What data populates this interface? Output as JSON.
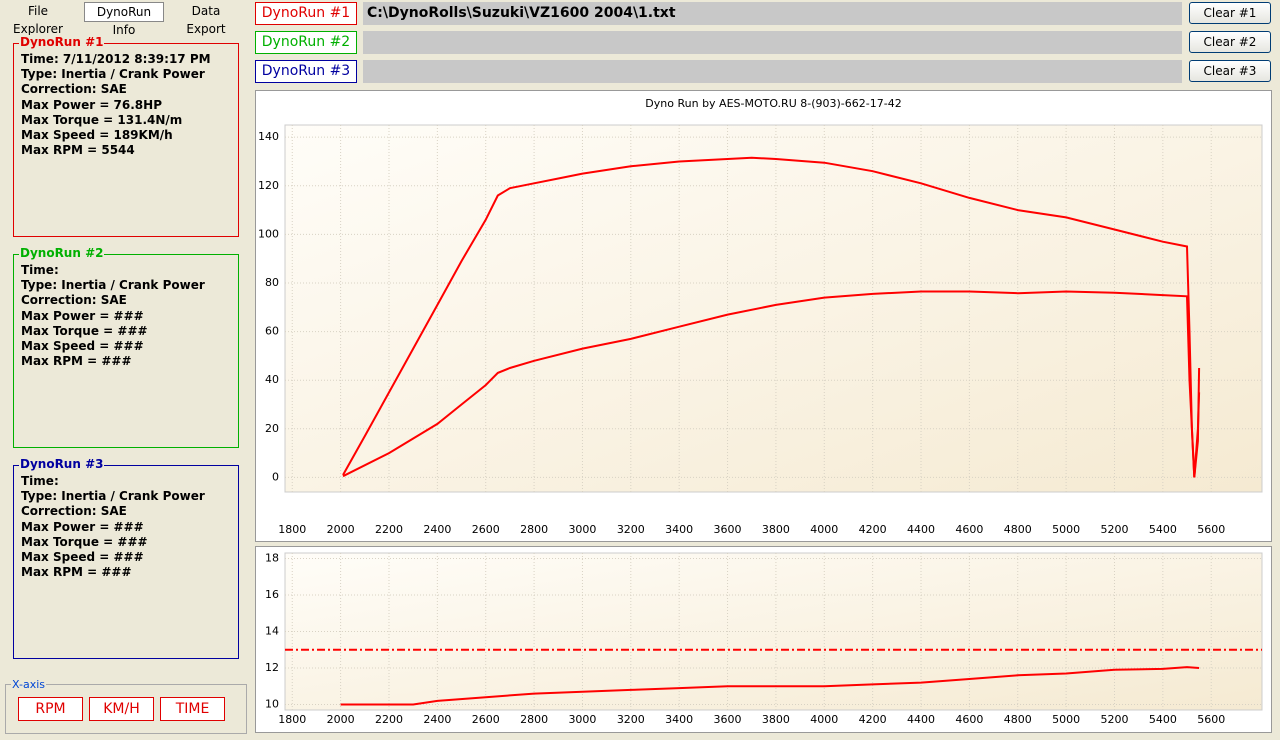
{
  "tabs": [
    "File Explorer",
    "DynoRun Info",
    "Data Export"
  ],
  "runs": [
    {
      "label": "DynoRun #1",
      "color": "#e00000",
      "path": "C:\\DynoRolls\\Suzuki\\VZ1600 2004\\1.txt"
    },
    {
      "label": "DynoRun #2",
      "color": "#00b000"
    },
    {
      "label": "DynoRun #3",
      "color": "#0000a0"
    }
  ],
  "clear_buttons": [
    "Clear #1",
    "Clear #2",
    "Clear #3"
  ],
  "info_panels": [
    {
      "title": "DynoRun #1",
      "color": "#e00000",
      "lines": [
        "Time: 7/11/2012 8:39:17 PM",
        "Type: Inertia / Crank Power",
        "Correction: SAE",
        "Max Power =  76.8HP",
        "Max Torque =  131.4N/m",
        "Max Speed =  189KM/h",
        "Max RPM =  5544"
      ]
    },
    {
      "title": "DynoRun #2",
      "color": "#00b000",
      "lines": [
        "Time:",
        "Type: Inertia / Crank Power",
        "Correction: SAE",
        "Max Power = ###",
        "Max Torque = ###",
        "Max Speed = ###",
        "Max RPM = ###"
      ]
    },
    {
      "title": "DynoRun #3",
      "color": "#0000a0",
      "lines": [
        "Time:",
        "Type: Inertia / Crank Power",
        "Correction: SAE",
        "Max Power = ###",
        "Max Torque = ###",
        "Max Speed = ###",
        "Max RPM = ###"
      ]
    }
  ],
  "x_axis": {
    "title": "X-axis",
    "buttons": [
      "RPM",
      "KM/H",
      "TIME"
    ]
  },
  "chart_data": [
    {
      "type": "line",
      "title": "Dyno Run by AES-MOTO.RU   8-(903)-662-17-42",
      "xlim": [
        1770,
        5810
      ],
      "ylim": [
        -6,
        145
      ],
      "xticks": [
        1800,
        2000,
        2200,
        2400,
        2600,
        2800,
        3000,
        3200,
        3400,
        3600,
        3800,
        4000,
        4200,
        4400,
        4600,
        4800,
        5000,
        5200,
        5400,
        5600
      ],
      "yticks": [
        0,
        20,
        40,
        60,
        80,
        100,
        120,
        140
      ],
      "grid": true,
      "series": [
        {
          "color": "#ff0000",
          "x": [
            2010,
            2100,
            2200,
            2300,
            2400,
            2500,
            2600,
            2650,
            2700,
            2800,
            2900,
            3000,
            3200,
            3400,
            3600,
            3700,
            3800,
            4000,
            4200,
            4400,
            4600,
            4800,
            5000,
            5200,
            5400,
            5500,
            5510,
            5520,
            5530,
            5545,
            5550
          ],
          "values": [
            1,
            17,
            35,
            53,
            71,
            89,
            106,
            116,
            119,
            121,
            123,
            125,
            128,
            130,
            131,
            131.5,
            131,
            129.5,
            126,
            121,
            115,
            110,
            107,
            102,
            97,
            95,
            60,
            20,
            0,
            15,
            45
          ]
        },
        {
          "color": "#ff0000",
          "x": [
            2010,
            2200,
            2400,
            2500,
            2600,
            2650,
            2700,
            2800,
            3000,
            3200,
            3400,
            3600,
            3800,
            4000,
            4200,
            4400,
            4600,
            4800,
            5000,
            5200,
            5400,
            5500,
            5510,
            5530,
            5545,
            5550
          ],
          "values": [
            0.5,
            10,
            22,
            30,
            38,
            43,
            45,
            48,
            53,
            57,
            62,
            67,
            71,
            74,
            75.5,
            76.5,
            76.5,
            75.8,
            76.5,
            76,
            75,
            74.5,
            40,
            0,
            20,
            35
          ]
        }
      ]
    },
    {
      "type": "line",
      "xlim": [
        1770,
        5810
      ],
      "ylim": [
        9.7,
        18.3
      ],
      "xticks": [
        1800,
        2000,
        2200,
        2400,
        2600,
        2800,
        3000,
        3200,
        3400,
        3600,
        3800,
        4000,
        4200,
        4400,
        4600,
        4800,
        5000,
        5200,
        5400,
        5600
      ],
      "yticks": [
        10,
        12,
        14,
        16,
        18
      ],
      "grid": true,
      "reference": 13,
      "reference_color": "#ff0000",
      "series": [
        {
          "color": "#ff0000",
          "x": [
            2000,
            2300,
            2400,
            2600,
            2800,
            3000,
            3200,
            3400,
            3600,
            4000,
            4200,
            4400,
            4600,
            4800,
            5000,
            5200,
            5400,
            5500,
            5550
          ],
          "values": [
            10,
            10,
            10.2,
            10.4,
            10.6,
            10.7,
            10.8,
            10.9,
            11,
            11,
            11.1,
            11.2,
            11.4,
            11.6,
            11.7,
            11.9,
            11.95,
            12.05,
            12
          ]
        }
      ]
    }
  ]
}
